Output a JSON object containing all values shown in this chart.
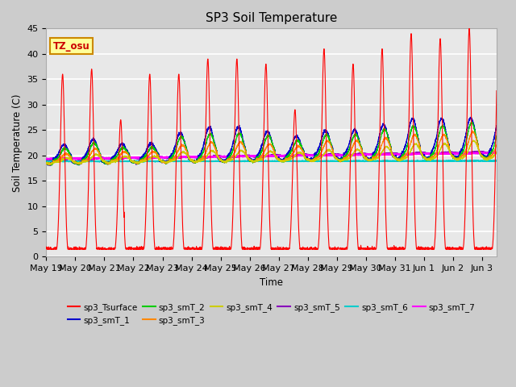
{
  "title": "SP3 Soil Temperature",
  "ylabel": "Soil Temperature (C)",
  "xlabel": "Time",
  "annotation": "TZ_osu",
  "ylim": [
    0,
    45
  ],
  "x_tick_labels": [
    "May 19",
    "May 20",
    "May 21",
    "May 22",
    "May 23",
    "May 24",
    "May 25",
    "May 26",
    "May 27",
    "May 28",
    "May 29",
    "May 30",
    "May 31",
    "Jun 1",
    "Jun 2",
    "Jun 3"
  ],
  "series_colors": {
    "sp3_Tsurface": "#FF0000",
    "sp3_smT_1": "#0000CC",
    "sp3_smT_2": "#00CC00",
    "sp3_smT_3": "#FF8800",
    "sp3_smT_4": "#CCCC00",
    "sp3_smT_5": "#8800BB",
    "sp3_smT_6": "#00CCCC",
    "sp3_smT_7": "#FF00FF"
  },
  "background_color": "#CCCCCC",
  "plot_bg_color": "#E8E8E8",
  "grid_color": "#FFFFFF",
  "figsize": [
    6.4,
    4.8
  ],
  "dpi": 100
}
